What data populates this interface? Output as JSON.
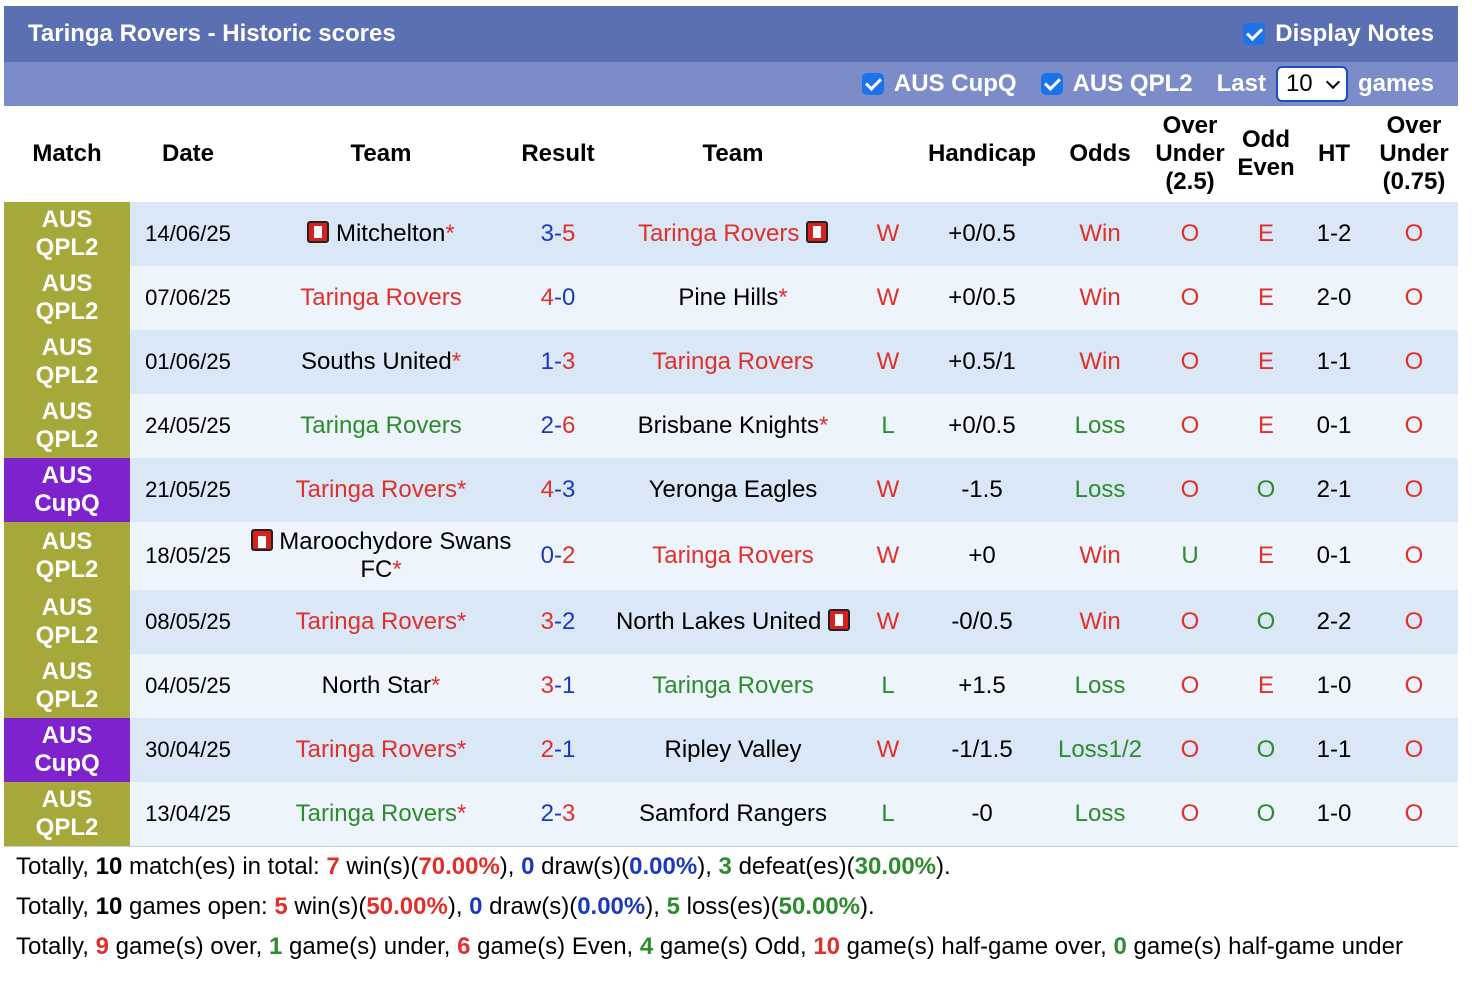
{
  "header": {
    "title": "Taringa Rovers - Historic scores",
    "display_notes_label": "Display Notes"
  },
  "filters": {
    "cupq_label": "AUS CupQ",
    "qpl2_label": "AUS QPL2",
    "last_label": "Last",
    "last_value": "10",
    "games_label": "games"
  },
  "columns": {
    "match": "Match",
    "date": "Date",
    "team": "Team",
    "result": "Result",
    "team2": "Team",
    "handicap": "Handicap",
    "odds": "Odds",
    "ou_l1": "Over",
    "ou_l2": "Under",
    "ou_l3": "(2.5)",
    "oe_l1": "Odd",
    "oe_l2": "Even",
    "ht": "HT",
    "ou2_l1": "Over",
    "ou2_l2": "Under",
    "ou2_l3": "(0.75)"
  },
  "rows": [
    {
      "league_l1": "AUS",
      "league_l2": "QPL2",
      "league_type": "qpl2",
      "date": "14/06/25",
      "home": "Mitchelton",
      "home_star": "*",
      "home_color": "black",
      "home_card": "red",
      "score_h": "3",
      "score_a": "5",
      "away": "Taringa Rovers",
      "away_star": "",
      "away_color": "red",
      "away_card": "red",
      "wl": "W",
      "hcp": "+0/0.5",
      "odds": "Win",
      "ou": "O",
      "oe": "E",
      "ht": "1-2",
      "ou2": "O"
    },
    {
      "league_l1": "AUS",
      "league_l2": "QPL2",
      "league_type": "qpl2",
      "date": "07/06/25",
      "home": "Taringa Rovers",
      "home_star": "",
      "home_color": "red",
      "home_card": "",
      "score_h": "4",
      "score_a": "0",
      "away": "Pine Hills",
      "away_star": "*",
      "away_color": "black",
      "away_card": "",
      "wl": "W",
      "hcp": "+0/0.5",
      "odds": "Win",
      "ou": "O",
      "oe": "E",
      "ht": "2-0",
      "ou2": "O"
    },
    {
      "league_l1": "AUS",
      "league_l2": "QPL2",
      "league_type": "qpl2",
      "date": "01/06/25",
      "home": "Souths United",
      "home_star": "*",
      "home_color": "black",
      "home_card": "",
      "score_h": "1",
      "score_a": "3",
      "away": "Taringa Rovers",
      "away_star": "",
      "away_color": "red",
      "away_card": "",
      "wl": "W",
      "hcp": "+0.5/1",
      "odds": "Win",
      "ou": "O",
      "oe": "E",
      "ht": "1-1",
      "ou2": "O"
    },
    {
      "league_l1": "AUS",
      "league_l2": "QPL2",
      "league_type": "qpl2",
      "date": "24/05/25",
      "home": "Taringa Rovers",
      "home_star": "",
      "home_color": "green",
      "home_card": "",
      "score_h": "2",
      "score_a": "6",
      "away": "Brisbane Knights",
      "away_star": "*",
      "away_color": "black",
      "away_card": "",
      "wl": "L",
      "hcp": "+0/0.5",
      "odds": "Loss",
      "ou": "O",
      "oe": "E",
      "ht": "0-1",
      "ou2": "O"
    },
    {
      "league_l1": "AUS",
      "league_l2": "CupQ",
      "league_type": "cupq",
      "date": "21/05/25",
      "home": "Taringa Rovers",
      "home_star": "*",
      "home_color": "red",
      "home_card": "",
      "score_h": "4",
      "score_a": "3",
      "away": "Yeronga Eagles",
      "away_star": "",
      "away_color": "black",
      "away_card": "",
      "wl": "W",
      "hcp": "-1.5",
      "odds": "Loss",
      "ou": "O",
      "oe": "O",
      "ht": "2-1",
      "ou2": "O"
    },
    {
      "league_l1": "AUS",
      "league_l2": "QPL2",
      "league_type": "qpl2",
      "date": "18/05/25",
      "home": "Maroochydore Swans FC",
      "home_star": "*",
      "home_color": "black",
      "home_card": "red2",
      "score_h": "0",
      "score_a": "2",
      "away": "Taringa Rovers",
      "away_star": "",
      "away_color": "red",
      "away_card": "",
      "wl": "W",
      "hcp": "+0",
      "odds": "Win",
      "ou": "U",
      "oe": "E",
      "ht": "0-1",
      "ou2": "O"
    },
    {
      "league_l1": "AUS",
      "league_l2": "QPL2",
      "league_type": "qpl2",
      "date": "08/05/25",
      "home": "Taringa Rovers",
      "home_star": "*",
      "home_color": "red",
      "home_card": "",
      "score_h": "3",
      "score_a": "2",
      "away": "North Lakes United",
      "away_star": "",
      "away_color": "black",
      "away_card": "red",
      "wl": "W",
      "hcp": "-0/0.5",
      "odds": "Win",
      "ou": "O",
      "oe": "O",
      "ht": "2-2",
      "ou2": "O"
    },
    {
      "league_l1": "AUS",
      "league_l2": "QPL2",
      "league_type": "qpl2",
      "date": "04/05/25",
      "home": "North Star",
      "home_star": "*",
      "home_color": "black",
      "home_card": "",
      "score_h": "3",
      "score_a": "1",
      "away": "Taringa Rovers",
      "away_star": "",
      "away_color": "green",
      "away_card": "",
      "wl": "L",
      "hcp": "+1.5",
      "odds": "Loss",
      "ou": "O",
      "oe": "E",
      "ht": "1-0",
      "ou2": "O"
    },
    {
      "league_l1": "AUS",
      "league_l2": "CupQ",
      "league_type": "cupq",
      "date": "30/04/25",
      "home": "Taringa Rovers",
      "home_star": "*",
      "home_color": "red",
      "home_card": "",
      "score_h": "2",
      "score_a": "1",
      "away": "Ripley Valley",
      "away_star": "",
      "away_color": "black",
      "away_card": "",
      "wl": "W",
      "hcp": "-1/1.5",
      "odds": "Loss1/2",
      "ou": "O",
      "oe": "O",
      "ht": "1-1",
      "ou2": "O"
    },
    {
      "league_l1": "AUS",
      "league_l2": "QPL2",
      "league_type": "qpl2",
      "date": "13/04/25",
      "home": "Taringa Rovers",
      "home_star": "*",
      "home_color": "green",
      "home_card": "",
      "score_h": "2",
      "score_a": "3",
      "away": "Samford Rangers",
      "away_star": "",
      "away_color": "black",
      "away_card": "",
      "wl": "L",
      "hcp": "-0",
      "odds": "Loss",
      "ou": "O",
      "oe": "O",
      "ht": "1-0",
      "ou2": "O"
    }
  ],
  "summary": {
    "line1": {
      "a": "Totally, ",
      "b": "10",
      "c": " match(es) in total: ",
      "d": "7",
      "e": " win(s)(",
      "f": "70.00%",
      "g": "), ",
      "h": "0",
      "i": " draw(s)(",
      "j": "0.00%",
      "k": "), ",
      "l": "3",
      "m": " defeat(es)(",
      "n": "30.00%",
      "o": ")."
    },
    "line2": {
      "a": "Totally, ",
      "b": "10",
      "c": " games open: ",
      "d": "5",
      "e": " win(s)(",
      "f": "50.00%",
      "g": "), ",
      "h": "0",
      "i": " draw(s)(",
      "j": "0.00%",
      "k": "), ",
      "l": "5",
      "m": " loss(es)(",
      "n": "50.00%",
      "o": ")."
    },
    "line3": {
      "a": "Totally, ",
      "b": "9",
      "c": " game(s) over, ",
      "d": "1",
      "e": " game(s) under, ",
      "f": "6",
      "g": " game(s) Even, ",
      "h": "4",
      "i": " game(s) Odd, ",
      "j": "10",
      "k": " game(s) half-game over, ",
      "l": "0",
      "m": " game(s) half-game under"
    }
  },
  "colors": {
    "header_bg": "#5b6fb3",
    "filter_bg": "#7b8cc8",
    "qpl2": "#a6a83a",
    "cupq": "#7e22ce",
    "row_odd": "#d9e7f7",
    "row_even": "#eef4fb",
    "win_red": "#e0302b",
    "loss_green": "#2e8b2e",
    "score_blue": "#1c39bb"
  }
}
